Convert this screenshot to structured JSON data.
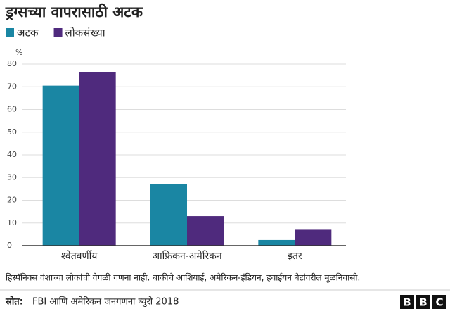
{
  "chart_data": {
    "type": "bar",
    "title": "ड्रग्सच्या वापरासाठी अटक",
    "y_unit": "%",
    "categories": [
      "श्वेतवर्णीय",
      "आफ्रिकन-अमेरिकन",
      "इतर"
    ],
    "series": [
      {
        "name": "अटक",
        "color": "#1a86a3",
        "values": [
          70.5,
          27,
          2.5
        ]
      },
      {
        "name": "लोकसंख्या",
        "color": "#4f2a7d",
        "values": [
          76.5,
          13,
          7
        ]
      }
    ],
    "ylim": [
      0,
      80
    ],
    "yticks": [
      0,
      10,
      20,
      30,
      40,
      50,
      60,
      70,
      80
    ],
    "grid": true,
    "note": "हिस्पॅनिक्स वंशाच्या लोकांची वेगळी गणना नाही. बाकीचे आशियाई, अमेरिकन-इंडियन, हवाईयन बेटांवरील मूळनिवासी.",
    "source_label": "स्रोत:",
    "source": "FBI आणि अमेरिकन जनगणना ब्युरो 2018",
    "logo": [
      "B",
      "B",
      "C"
    ]
  }
}
